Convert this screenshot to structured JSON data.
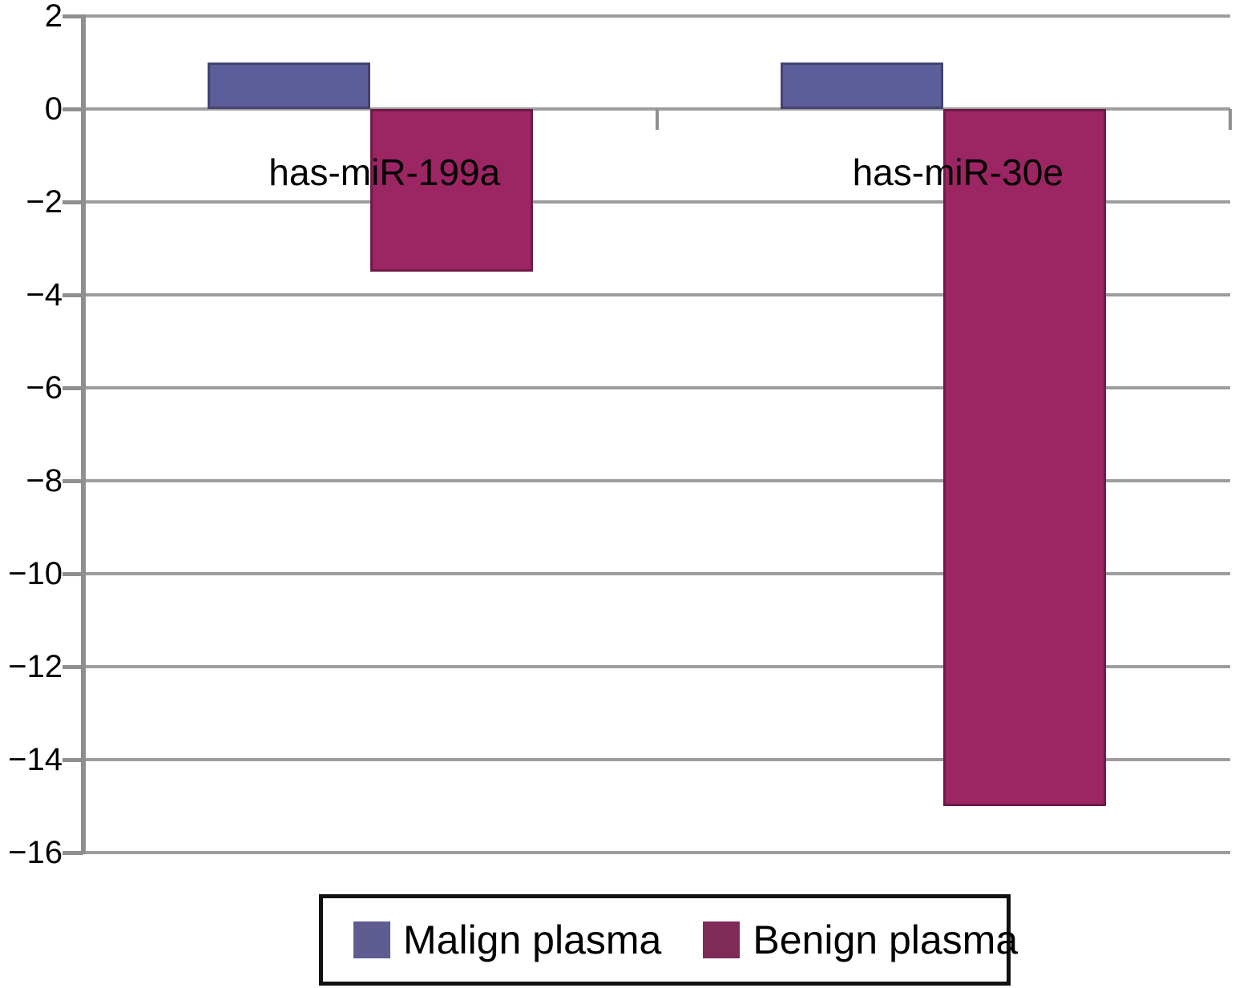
{
  "chart_data": {
    "type": "bar",
    "title": "",
    "xlabel": "",
    "ylabel": "",
    "categories": [
      "has-miR-199a",
      "has-miR-30e"
    ],
    "series": [
      {
        "name": "Malign plasma",
        "color": "#5c5d99",
        "border_color": "#43436f",
        "legend_swatch_color": "#5e5c91",
        "values": [
          1.0,
          1.0
        ]
      },
      {
        "name": "Benign plasma",
        "color": "#9c2563",
        "border_color": "#6f1a47",
        "legend_swatch_color": "#7e2b58",
        "values": [
          -3.5,
          -15.0
        ]
      }
    ],
    "ylim": [
      -16,
      2
    ],
    "yticks": [
      2,
      0,
      -2,
      -4,
      -6,
      -8,
      -10,
      -12,
      -14,
      -16
    ],
    "grid": true,
    "gridline_color": "#9d9d9d",
    "axis_color": "#8f8f8f",
    "legend_position": "bottom"
  }
}
